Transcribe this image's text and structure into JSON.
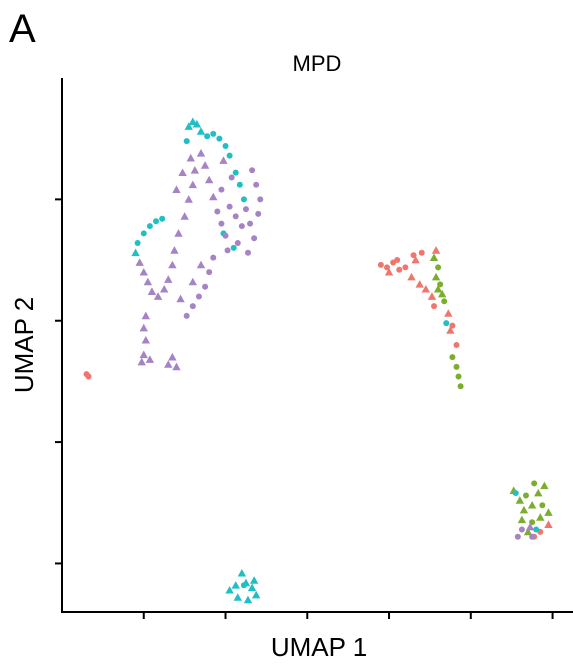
{
  "panel": {
    "label": "A"
  },
  "colors": {
    "red": "#F0766D",
    "green": "#7CAE2E",
    "cyan": "#1FBFC4",
    "purple": "#A583C5"
  },
  "chart_data": {
    "type": "scatter",
    "title": "MPD",
    "xlabel": "UMAP 1",
    "ylabel": "UMAP 2",
    "xlim": [
      -10,
      15
    ],
    "ylim": [
      -8,
      14
    ],
    "xticks": [
      -6,
      -2,
      2,
      6,
      10,
      14
    ],
    "yticks": [
      -6,
      -1,
      4,
      9
    ],
    "xtick_labels": [
      "",
      "",
      "",
      "",
      "",
      ""
    ],
    "ytick_labels": [
      "",
      "",
      "",
      ""
    ],
    "legend": "none",
    "grid": false,
    "series": [
      {
        "color": "#F0766D",
        "points": [
          {
            "x": -8.8,
            "y": 1.8,
            "shape": "circle"
          },
          {
            "x": -8.7,
            "y": 1.7,
            "shape": "circle"
          },
          {
            "x": 5.6,
            "y": 6.3,
            "shape": "circle"
          },
          {
            "x": 5.9,
            "y": 6.2,
            "shape": "circle"
          },
          {
            "x": 6.2,
            "y": 6.4,
            "shape": "circle"
          },
          {
            "x": 6.5,
            "y": 6.1,
            "shape": "circle"
          },
          {
            "x": 6.0,
            "y": 6.0,
            "shape": "triangle"
          },
          {
            "x": 6.8,
            "y": 6.2,
            "shape": "circle"
          },
          {
            "x": 7.1,
            "y": 5.8,
            "shape": "triangle"
          },
          {
            "x": 7.3,
            "y": 6.5,
            "shape": "triangle"
          },
          {
            "x": 7.5,
            "y": 5.5,
            "shape": "triangle"
          },
          {
            "x": 7.8,
            "y": 5.3,
            "shape": "triangle"
          },
          {
            "x": 7.6,
            "y": 6.8,
            "shape": "circle"
          },
          {
            "x": 8.1,
            "y": 5.0,
            "shape": "triangle"
          },
          {
            "x": 8.3,
            "y": 6.9,
            "shape": "triangle"
          },
          {
            "x": 8.2,
            "y": 4.6,
            "shape": "circle"
          },
          {
            "x": 8.9,
            "y": 4.3,
            "shape": "triangle"
          },
          {
            "x": 9.1,
            "y": 3.8,
            "shape": "circle"
          },
          {
            "x": 9.0,
            "y": 3.6,
            "shape": "triangle"
          },
          {
            "x": 9.3,
            "y": 3.0,
            "shape": "circle"
          },
          {
            "x": 7.2,
            "y": 6.7,
            "shape": "circle"
          },
          {
            "x": 6.4,
            "y": 6.5,
            "shape": "circle"
          },
          {
            "x": 13.1,
            "y": -4.9,
            "shape": "circle"
          },
          {
            "x": 13.4,
            "y": -4.7,
            "shape": "circle"
          },
          {
            "x": 13.8,
            "y": -4.4,
            "shape": "triangle"
          }
        ]
      },
      {
        "color": "#7CAE2E",
        "points": [
          {
            "x": 8.2,
            "y": 6.6,
            "shape": "triangle"
          },
          {
            "x": 8.4,
            "y": 6.2,
            "shape": "circle"
          },
          {
            "x": 8.3,
            "y": 5.8,
            "shape": "triangle"
          },
          {
            "x": 8.5,
            "y": 5.5,
            "shape": "circle"
          },
          {
            "x": 8.6,
            "y": 5.1,
            "shape": "triangle"
          },
          {
            "x": 8.7,
            "y": 4.8,
            "shape": "circle"
          },
          {
            "x": 8.4,
            "y": 5.3,
            "shape": "triangle"
          },
          {
            "x": 9.1,
            "y": 2.5,
            "shape": "circle"
          },
          {
            "x": 9.3,
            "y": 2.1,
            "shape": "circle"
          },
          {
            "x": 9.4,
            "y": 1.7,
            "shape": "circle"
          },
          {
            "x": 9.5,
            "y": 1.3,
            "shape": "circle"
          },
          {
            "x": 12.1,
            "y": -3.0,
            "shape": "triangle"
          },
          {
            "x": 12.4,
            "y": -3.4,
            "shape": "triangle"
          },
          {
            "x": 12.7,
            "y": -3.2,
            "shape": "circle"
          },
          {
            "x": 12.6,
            "y": -3.8,
            "shape": "triangle"
          },
          {
            "x": 13.0,
            "y": -3.6,
            "shape": "triangle"
          },
          {
            "x": 13.3,
            "y": -3.1,
            "shape": "triangle"
          },
          {
            "x": 13.5,
            "y": -3.6,
            "shape": "circle"
          },
          {
            "x": 13.8,
            "y": -3.9,
            "shape": "triangle"
          },
          {
            "x": 13.4,
            "y": -4.1,
            "shape": "triangle"
          },
          {
            "x": 13.0,
            "y": -4.3,
            "shape": "circle"
          },
          {
            "x": 12.8,
            "y": -4.7,
            "shape": "triangle"
          },
          {
            "x": 13.6,
            "y": -2.8,
            "shape": "triangle"
          },
          {
            "x": 13.1,
            "y": -2.7,
            "shape": "circle"
          },
          {
            "x": 12.5,
            "y": -4.2,
            "shape": "triangle"
          }
        ]
      },
      {
        "color": "#1FBFC4",
        "points": [
          {
            "x": -6.3,
            "y": 7.2,
            "shape": "circle"
          },
          {
            "x": -6.0,
            "y": 7.6,
            "shape": "circle"
          },
          {
            "x": -5.7,
            "y": 7.9,
            "shape": "circle"
          },
          {
            "x": -5.4,
            "y": 8.1,
            "shape": "circle"
          },
          {
            "x": -5.1,
            "y": 8.2,
            "shape": "circle"
          },
          {
            "x": -6.4,
            "y": 6.8,
            "shape": "triangle"
          },
          {
            "x": -3.8,
            "y": 12.0,
            "shape": "triangle"
          },
          {
            "x": -3.6,
            "y": 12.2,
            "shape": "triangle"
          },
          {
            "x": -3.4,
            "y": 12.1,
            "shape": "triangle"
          },
          {
            "x": -3.2,
            "y": 11.8,
            "shape": "triangle"
          },
          {
            "x": -2.9,
            "y": 11.6,
            "shape": "circle"
          },
          {
            "x": -2.6,
            "y": 11.7,
            "shape": "circle"
          },
          {
            "x": -2.3,
            "y": 11.5,
            "shape": "circle"
          },
          {
            "x": -2.0,
            "y": 11.2,
            "shape": "circle"
          },
          {
            "x": -1.8,
            "y": 10.8,
            "shape": "circle"
          },
          {
            "x": -1.5,
            "y": 10.1,
            "shape": "circle"
          },
          {
            "x": -1.3,
            "y": 9.6,
            "shape": "circle"
          },
          {
            "x": -1.1,
            "y": 9.0,
            "shape": "circle"
          },
          {
            "x": -1.6,
            "y": 7.0,
            "shape": "circle"
          },
          {
            "x": -2.1,
            "y": 7.6,
            "shape": "circle"
          },
          {
            "x": -3.9,
            "y": 11.4,
            "shape": "circle"
          },
          {
            "x": -1.2,
            "y": -6.4,
            "shape": "triangle"
          },
          {
            "x": -1.5,
            "y": -6.9,
            "shape": "triangle"
          },
          {
            "x": -1.0,
            "y": -6.8,
            "shape": "triangle"
          },
          {
            "x": -0.7,
            "y": -7.0,
            "shape": "triangle"
          },
          {
            "x": -1.8,
            "y": -7.1,
            "shape": "triangle"
          },
          {
            "x": -0.5,
            "y": -7.3,
            "shape": "triangle"
          },
          {
            "x": -1.4,
            "y": -7.4,
            "shape": "triangle"
          },
          {
            "x": -0.9,
            "y": -7.5,
            "shape": "triangle"
          },
          {
            "x": -1.1,
            "y": -6.9,
            "shape": "circle"
          },
          {
            "x": -0.6,
            "y": -6.7,
            "shape": "triangle"
          },
          {
            "x": 8.8,
            "y": 3.9,
            "shape": "circle"
          },
          {
            "x": 12.2,
            "y": -3.1,
            "shape": "circle"
          },
          {
            "x": 13.2,
            "y": -4.6,
            "shape": "circle"
          }
        ]
      },
      {
        "color": "#A583C5",
        "points": [
          {
            "x": -6.2,
            "y": 6.4,
            "shape": "triangle"
          },
          {
            "x": -6.0,
            "y": 6.0,
            "shape": "triangle"
          },
          {
            "x": -5.8,
            "y": 5.6,
            "shape": "triangle"
          },
          {
            "x": -5.6,
            "y": 5.2,
            "shape": "triangle"
          },
          {
            "x": -5.3,
            "y": 5.0,
            "shape": "triangle"
          },
          {
            "x": -5.0,
            "y": 5.3,
            "shape": "triangle"
          },
          {
            "x": -4.8,
            "y": 5.7,
            "shape": "triangle"
          },
          {
            "x": -4.6,
            "y": 6.3,
            "shape": "triangle"
          },
          {
            "x": -4.5,
            "y": 6.9,
            "shape": "triangle"
          },
          {
            "x": -4.3,
            "y": 7.6,
            "shape": "triangle"
          },
          {
            "x": -4.0,
            "y": 8.3,
            "shape": "triangle"
          },
          {
            "x": -3.8,
            "y": 9.0,
            "shape": "triangle"
          },
          {
            "x": -3.6,
            "y": 9.6,
            "shape": "triangle"
          },
          {
            "x": -3.5,
            "y": 10.2,
            "shape": "triangle"
          },
          {
            "x": -3.7,
            "y": 10.7,
            "shape": "triangle"
          },
          {
            "x": -3.2,
            "y": 10.9,
            "shape": "triangle"
          },
          {
            "x": -3.0,
            "y": 10.4,
            "shape": "triangle"
          },
          {
            "x": -2.8,
            "y": 9.8,
            "shape": "triangle"
          },
          {
            "x": -2.6,
            "y": 9.1,
            "shape": "triangle"
          },
          {
            "x": -2.4,
            "y": 8.5,
            "shape": "circle"
          },
          {
            "x": -2.2,
            "y": 8.0,
            "shape": "circle"
          },
          {
            "x": -2.0,
            "y": 7.5,
            "shape": "circle"
          },
          {
            "x": -1.8,
            "y": 8.7,
            "shape": "circle"
          },
          {
            "x": -1.5,
            "y": 8.3,
            "shape": "circle"
          },
          {
            "x": -1.2,
            "y": 7.9,
            "shape": "circle"
          },
          {
            "x": -1.0,
            "y": 8.6,
            "shape": "circle"
          },
          {
            "x": -0.8,
            "y": 8.0,
            "shape": "circle"
          },
          {
            "x": -0.6,
            "y": 7.4,
            "shape": "circle"
          },
          {
            "x": -0.9,
            "y": 6.8,
            "shape": "circle"
          },
          {
            "x": -2.6,
            "y": 6.6,
            "shape": "circle"
          },
          {
            "x": -2.8,
            "y": 6.0,
            "shape": "circle"
          },
          {
            "x": -3.0,
            "y": 5.4,
            "shape": "circle"
          },
          {
            "x": -3.3,
            "y": 5.0,
            "shape": "circle"
          },
          {
            "x": -3.6,
            "y": 4.6,
            "shape": "circle"
          },
          {
            "x": -3.9,
            "y": 4.2,
            "shape": "circle"
          },
          {
            "x": -3.6,
            "y": 5.6,
            "shape": "triangle"
          },
          {
            "x": -3.2,
            "y": 6.3,
            "shape": "triangle"
          },
          {
            "x": -4.2,
            "y": 4.9,
            "shape": "triangle"
          },
          {
            "x": -5.9,
            "y": 4.2,
            "shape": "triangle"
          },
          {
            "x": -6.0,
            "y": 3.7,
            "shape": "triangle"
          },
          {
            "x": -5.9,
            "y": 3.2,
            "shape": "triangle"
          },
          {
            "x": -6.1,
            "y": 2.3,
            "shape": "triangle"
          },
          {
            "x": -6.0,
            "y": 2.6,
            "shape": "triangle"
          },
          {
            "x": -5.7,
            "y": 2.4,
            "shape": "triangle"
          },
          {
            "x": -4.6,
            "y": 2.5,
            "shape": "triangle"
          },
          {
            "x": -4.8,
            "y": 2.2,
            "shape": "triangle"
          },
          {
            "x": -4.4,
            "y": 2.1,
            "shape": "triangle"
          },
          {
            "x": -2.2,
            "y": 9.4,
            "shape": "circle"
          },
          {
            "x": -1.7,
            "y": 9.9,
            "shape": "circle"
          },
          {
            "x": -0.4,
            "y": 8.4,
            "shape": "circle"
          },
          {
            "x": -0.3,
            "y": 9.0,
            "shape": "circle"
          },
          {
            "x": -0.5,
            "y": 9.6,
            "shape": "circle"
          },
          {
            "x": -0.7,
            "y": 10.2,
            "shape": "circle"
          },
          {
            "x": -4.1,
            "y": 10.1,
            "shape": "triangle"
          },
          {
            "x": -4.4,
            "y": 9.4,
            "shape": "triangle"
          },
          {
            "x": -2.1,
            "y": 10.6,
            "shape": "triangle"
          },
          {
            "x": -1.4,
            "y": 7.2,
            "shape": "circle"
          },
          {
            "x": -1.9,
            "y": 6.9,
            "shape": "circle"
          },
          {
            "x": 13.0,
            "y": -4.9,
            "shape": "circle"
          },
          {
            "x": 12.5,
            "y": -4.6,
            "shape": "circle"
          },
          {
            "x": 12.3,
            "y": -4.9,
            "shape": "circle"
          },
          {
            "x": 12.9,
            "y": -4.5,
            "shape": "triangle"
          }
        ]
      }
    ]
  }
}
